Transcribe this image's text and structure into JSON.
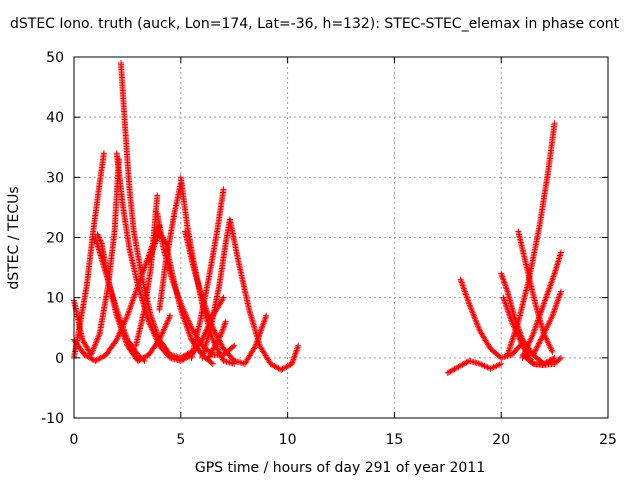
{
  "chart_data": {
    "type": "scatter",
    "title": "dSTEC Iono. truth (auck, Lon=174, Lat=-36, h=132): STEC-STEC_elemax in phase cont",
    "xlabel": "GPS time / hours of day 291 of year 2011",
    "ylabel": "dSTEC  / TECUs",
    "xlim": [
      0,
      25
    ],
    "ylim": [
      -10,
      50
    ],
    "x_ticks": [
      "0",
      "5",
      "10",
      "15",
      "20",
      "25"
    ],
    "y_ticks": [
      "-10",
      "0",
      "10",
      "20",
      "30",
      "40",
      "50"
    ],
    "grid": true,
    "marker": "+",
    "color": "#ff0000",
    "series": [
      {
        "x": [
          0.0,
          0.3,
          0.6,
          0.9,
          1.2,
          1.4
        ],
        "y": [
          0.0,
          6.0,
          12.0,
          21.0,
          29.0,
          34.0
        ]
      },
      {
        "x": [
          0.0,
          0.4,
          0.8,
          1.2,
          1.6,
          1.9,
          2.1
        ],
        "y": [
          9.5,
          3.0,
          0.5,
          4.0,
          12.0,
          21.0,
          33.0
        ]
      },
      {
        "x": [
          0.0,
          0.5,
          1.0,
          1.5,
          2.0,
          2.5,
          3.0,
          3.5,
          4.0
        ],
        "y": [
          3.0,
          0.5,
          -0.5,
          0.5,
          3.0,
          7.0,
          12.0,
          17.0,
          22.0
        ]
      },
      {
        "x": [
          1.0,
          1.5,
          2.0,
          2.5,
          3.0,
          3.3
        ],
        "y": [
          20.0,
          14.0,
          8.0,
          3.0,
          0.5,
          -0.5
        ]
      },
      {
        "x": [
          1.1,
          1.3,
          1.6,
          2.0,
          2.5,
          3.0,
          3.5,
          4.0,
          4.5
        ],
        "y": [
          20.5,
          19.0,
          13.0,
          7.0,
          2.0,
          -0.5,
          0.5,
          3.0,
          7.0
        ]
      },
      {
        "x": [
          2.2,
          2.4,
          2.6,
          2.8,
          3.2,
          3.6,
          4.0,
          4.5,
          5.0,
          5.5
        ],
        "y": [
          49.0,
          38.0,
          28.0,
          21.0,
          13.0,
          7.0,
          3.0,
          0.5,
          0.0,
          1.0
        ]
      },
      {
        "x": [
          2.0,
          2.3,
          2.6,
          3.0,
          3.5,
          4.0,
          4.5,
          5.0,
          5.5,
          6.0,
          6.5,
          7.0
        ],
        "y": [
          34.0,
          25.0,
          18.0,
          12.0,
          6.0,
          2.0,
          0.0,
          -0.5,
          0.5,
          3.0,
          7.0,
          10.0
        ]
      },
      {
        "x": [
          3.5,
          3.8,
          4.0,
          4.3,
          4.6,
          5.0,
          5.5,
          6.0,
          6.5
        ],
        "y": [
          16.0,
          19.0,
          21.0,
          19.0,
          14.0,
          8.0,
          3.0,
          0.5,
          -1.0
        ]
      },
      {
        "x": [
          2.9,
          3.3,
          3.6,
          3.9
        ],
        "y": [
          2.0,
          8.0,
          15.0,
          27.0
        ]
      },
      {
        "x": [
          3.9,
          4.2,
          4.6,
          5.0,
          5.5,
          6.0,
          6.5,
          7.0,
          7.5
        ],
        "y": [
          24.0,
          18.0,
          13.0,
          9.0,
          5.0,
          2.0,
          0.5,
          0.5,
          2.0
        ]
      },
      {
        "x": [
          4.0,
          4.3,
          4.7,
          5.0
        ],
        "y": [
          8.0,
          16.0,
          24.0,
          29.0
        ]
      },
      {
        "x": [
          5.0,
          5.3,
          5.6,
          6.0,
          6.5,
          7.0,
          7.5
        ],
        "y": [
          30.0,
          22.0,
          16.0,
          9.0,
          3.0,
          -0.5,
          -1.0
        ]
      },
      {
        "x": [
          5.2,
          5.6,
          6.0,
          6.5,
          7.0,
          7.5,
          8.0,
          8.5,
          9.0
        ],
        "y": [
          21.0,
          15.0,
          10.0,
          5.0,
          1.5,
          -0.5,
          -1.0,
          2.0,
          7.0
        ]
      },
      {
        "x": [
          5.5,
          5.9,
          6.3,
          6.7,
          7.0
        ],
        "y": [
          0.0,
          6.0,
          13.0,
          21.0,
          28.0
        ]
      },
      {
        "x": [
          6.0,
          6.4,
          6.8,
          7.1,
          7.3
        ],
        "y": [
          0.0,
          5.0,
          12.0,
          19.0,
          23.0
        ]
      },
      {
        "x": [
          7.3,
          7.7,
          8.2,
          8.7,
          9.2,
          9.7,
          10.2,
          10.5
        ],
        "y": [
          23.0,
          16.0,
          8.0,
          2.0,
          -1.0,
          -2.0,
          -1.0,
          2.0
        ]
      },
      {
        "x": [
          6.3,
          6.6,
          6.9,
          7.1
        ],
        "y": [
          0.0,
          2.0,
          4.0,
          6.0
        ]
      },
      {
        "x": [
          17.5,
          18.0,
          18.5,
          19.0,
          19.5,
          20.0
        ],
        "y": [
          -2.5,
          -1.5,
          -0.5,
          -1.0,
          -1.8,
          -1.0
        ]
      },
      {
        "x": [
          18.1,
          18.5,
          19.0,
          19.5,
          20.0,
          20.5,
          21.0
        ],
        "y": [
          13.0,
          9.0,
          4.5,
          1.5,
          0.0,
          0.5,
          2.5
        ]
      },
      {
        "x": [
          20.0,
          20.3,
          20.6,
          21.0,
          21.5,
          22.0,
          22.5
        ],
        "y": [
          14.0,
          11.0,
          7.0,
          3.0,
          0.5,
          -1.0,
          0.0
        ]
      },
      {
        "x": [
          20.1,
          20.5,
          21.0,
          21.5,
          22.0,
          22.5
        ],
        "y": [
          10.0,
          6.0,
          2.0,
          -1.0,
          -1.2,
          -0.5
        ]
      },
      {
        "x": [
          20.8,
          21.2,
          21.6,
          22.0,
          22.4
        ],
        "y": [
          21.0,
          15.0,
          9.0,
          4.0,
          1.0
        ]
      },
      {
        "x": [
          20.3,
          20.8,
          21.3,
          21.8,
          22.2,
          22.5
        ],
        "y": [
          0.5,
          6.0,
          13.0,
          22.0,
          31.0,
          39.0
        ]
      },
      {
        "x": [
          21.0,
          21.5,
          22.0,
          22.5,
          22.8
        ],
        "y": [
          0.0,
          4.0,
          9.0,
          14.0,
          17.5
        ]
      },
      {
        "x": [
          21.5,
          22.0,
          22.4,
          22.8
        ],
        "y": [
          0.5,
          4.0,
          7.0,
          11.0
        ]
      },
      {
        "x": [
          21.0,
          21.5,
          22.0,
          22.5,
          22.8
        ],
        "y": [
          0.5,
          -1.0,
          -1.2,
          -1.0,
          0.0
        ]
      }
    ]
  }
}
